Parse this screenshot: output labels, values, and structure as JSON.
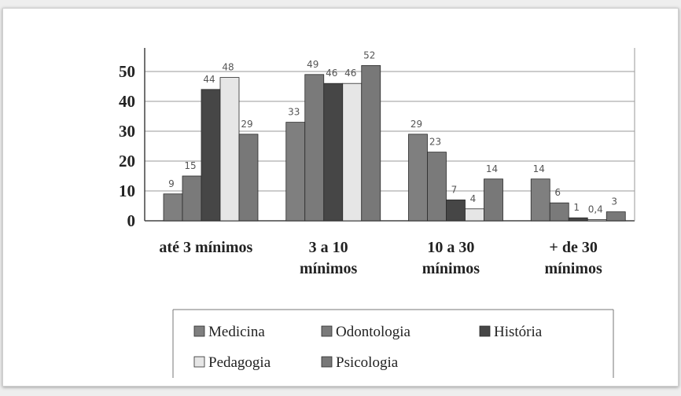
{
  "chart_data": {
    "type": "bar",
    "categories": [
      [
        "até 3 mínimos"
      ],
      [
        "3 a 10",
        "mínimos"
      ],
      [
        "10 a 30",
        "mínimos"
      ],
      [
        "+ de 30",
        "mínimos"
      ]
    ],
    "series": [
      {
        "name": "Medicina",
        "values": [
          9,
          33,
          29,
          14
        ],
        "labels": [
          "9",
          "33",
          "29",
          "14"
        ],
        "color": "#7f7f7f"
      },
      {
        "name": "Odontologia",
        "values": [
          15,
          49,
          23,
          6
        ],
        "labels": [
          "15",
          "49",
          "23",
          "6"
        ],
        "color": "#7a7a7a"
      },
      {
        "name": "História",
        "values": [
          44,
          46,
          7,
          1
        ],
        "labels": [
          "44",
          "46",
          "7",
          "1"
        ],
        "color": "#464646"
      },
      {
        "name": "Pedagogia",
        "values": [
          48,
          46,
          4,
          0.4
        ],
        "labels": [
          "48",
          "46",
          "4",
          "0,4"
        ],
        "color": "#e6e6e6"
      },
      {
        "name": "Psicologia",
        "values": [
          29,
          52,
          14,
          3
        ],
        "labels": [
          "29",
          "52",
          "14",
          "3"
        ],
        "color": "#787878"
      }
    ],
    "ylim": [
      0,
      60
    ],
    "yticks": [
      "0",
      "10",
      "20",
      "30",
      "40",
      "50",
      "60"
    ],
    "grid": true,
    "legend_position": "bottom"
  }
}
